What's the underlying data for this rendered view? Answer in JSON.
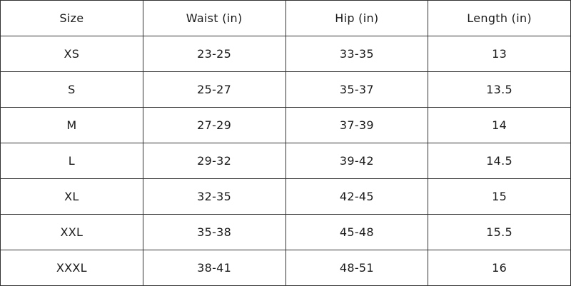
{
  "table": {
    "header": [
      "Size",
      "Waist (in)",
      "Hip (in)",
      "Length (in)"
    ],
    "rows": [
      [
        "XS",
        "23-25",
        "33-35",
        "13"
      ],
      [
        "S",
        "25-27",
        "35-37",
        "13.5"
      ],
      [
        "M",
        "27-29",
        "37-39",
        "14"
      ],
      [
        "L",
        "29-32",
        "39-42",
        "14.5"
      ],
      [
        "XL",
        "32-35",
        "42-45",
        "15"
      ],
      [
        "XXL",
        "35-38",
        "45-48",
        "15.5"
      ],
      [
        "XXXL",
        "38-41",
        "48-51",
        "16"
      ]
    ]
  }
}
